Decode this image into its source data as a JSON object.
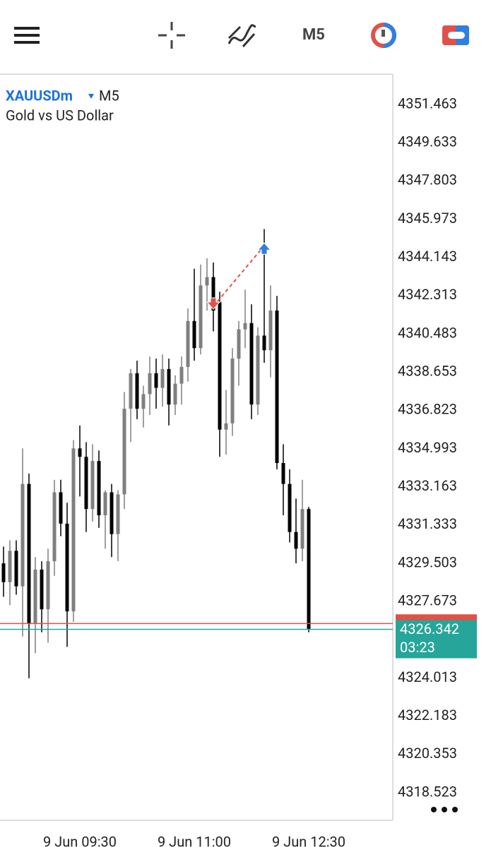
{
  "chart_data": {
    "type": "candlestick",
    "symbol": "XAUUSDm",
    "timeframe": "M5",
    "description": "Gold vs US Dollar",
    "categories": [
      null,
      null,
      null,
      null,
      null,
      null,
      null,
      null,
      null,
      null,
      null,
      null,
      "9 Jun 09:30",
      null,
      null,
      null,
      null,
      null,
      null,
      null,
      null,
      null,
      null,
      null,
      null,
      null,
      null,
      null,
      null,
      null,
      "9 Jun 11:00",
      null,
      null,
      null,
      null,
      null,
      null,
      null,
      null,
      null,
      null,
      null,
      null,
      null,
      null,
      null,
      null,
      null,
      "9 Jun 12:30"
    ],
    "series": [
      {
        "up_color": "#7f7f7f",
        "down_color": "#000000",
        "open": [
          4329.5,
          4328.6,
          4330.1,
          4328.4,
          4333.3,
          4326.6,
          4329.2,
          4327.3,
          4329.6,
          4332.9,
          4331.4,
          4327.2,
          4335.0,
          4334.6,
          4332.1,
          4334.4,
          4331.8,
          4332.9,
          4330.9,
          4332.8,
          4336.9,
          4338.6,
          4336.9,
          4337.6,
          4338.6,
          4337.9,
          4338.8,
          4337.1,
          4338.1,
          4338.9,
          4341.1,
          4339.8,
          4342.8,
          4343.2,
          4342.0,
          4335.9,
          4336.2,
          4339.3,
          4340.7,
          4341.0,
          4337.1,
          4340.4,
          4339.7,
          4341.6,
          4334.3,
          4333.3,
          4331.0,
          4330.2,
          4332.1
        ],
        "high": [
          4330.3,
          4330.6,
          4330.6,
          4335.0,
          4333.8,
          4329.8,
          4329.6,
          4330.2,
          4333.5,
          4333.5,
          4332.4,
          4335.4,
          4336.1,
          4335.3,
          4335.2,
          4334.9,
          4333.0,
          4333.3,
          4333.0,
          4337.7,
          4338.8,
          4339.2,
          4338.0,
          4339.4,
          4339.3,
          4339.5,
          4339.3,
          4338.5,
          4339.4,
          4341.7,
          4343.6,
          4343.8,
          4344.1,
          4343.9,
          4342.5,
          4337.8,
          4339.8,
          4341.1,
          4342.6,
          4341.9,
          4340.8,
          4345.5,
          4342.8,
          4342.3,
          4335.2,
          4334.0,
          4332.6,
          4333.5,
          4332.2
        ],
        "low": [
          4327.9,
          4327.5,
          4328.0,
          4326.0,
          4324.0,
          4325.2,
          4326.2,
          4325.7,
          4328.9,
          4330.8,
          4325.5,
          4326.7,
          4332.7,
          4331.0,
          4331.5,
          4331.2,
          4330.2,
          4329.8,
          4329.6,
          4332.1,
          4335.3,
          4336.4,
          4336.0,
          4336.6,
          4336.9,
          4337.0,
          4336.1,
          4336.6,
          4337.1,
          4338.2,
          4339.2,
          4339.5,
          4341.6,
          4340.6,
          4334.6,
          4334.7,
          4335.6,
          4338.0,
          4339.8,
          4336.4,
          4336.6,
          4339.1,
          4338.4,
          4334.0,
          4331.8,
          4330.5,
          4329.5,
          4329.6,
          4326.2
        ],
        "close": [
          4328.6,
          4330.1,
          4328.4,
          4333.3,
          4326.6,
          4329.2,
          4327.3,
          4329.6,
          4332.9,
          4331.4,
          4327.2,
          4335.0,
          4334.6,
          4332.1,
          4334.4,
          4331.8,
          4332.9,
          4330.9,
          4332.8,
          4336.9,
          4338.6,
          4336.9,
          4337.6,
          4338.6,
          4337.9,
          4338.8,
          4337.1,
          4338.1,
          4338.9,
          4341.1,
          4339.8,
          4342.8,
          4343.2,
          4341.6,
          4335.9,
          4336.2,
          4339.3,
          4340.7,
          4341.0,
          4337.1,
          4340.4,
          4339.7,
          4341.6,
          4334.3,
          4333.3,
          4331.0,
          4330.2,
          4332.1,
          4326.342
        ]
      }
    ],
    "ylim": [
      4317.274,
      4352.916
    ],
    "yticks": [
      4351.463,
      4349.633,
      4347.803,
      4345.973,
      4344.143,
      4342.313,
      4340.483,
      4338.653,
      4336.823,
      4334.993,
      4333.163,
      4331.333,
      4329.503,
      4327.673,
      4324.013,
      4322.183,
      4320.353,
      4318.523
    ],
    "bid": 4326.342,
    "bid_color": "#26a69a",
    "countdown": "03:23",
    "ask": 4326.62,
    "ask_color": "#e0514a",
    "trade": {
      "entry": 4341.8,
      "entry_index": 33,
      "exit": 4344.7,
      "exit_index": 41
    }
  }
}
